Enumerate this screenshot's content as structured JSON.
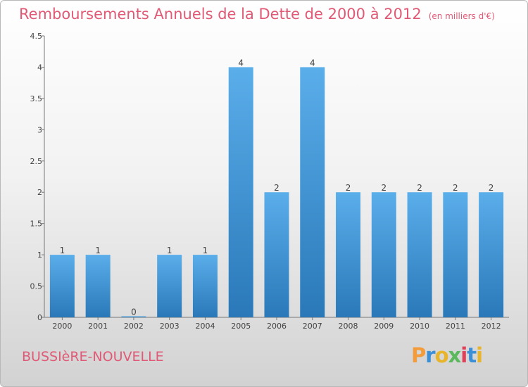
{
  "header": {
    "title": "Remboursements Annuels de la Dette de 2000 à 2012",
    "subtitle": "(en milliers d'€)"
  },
  "footer": {
    "commune": "BUSSIèRE-NOUVELLE",
    "brand": "Proxiti",
    "brand_colors": [
      "#f39c3c",
      "#3a8fd6",
      "#e8b52a",
      "#5cb85c",
      "#e0405a",
      "#3a8fd6",
      "#e8b52a"
    ]
  },
  "chart_data": {
    "type": "bar",
    "categories": [
      "2000",
      "2001",
      "2002",
      "2003",
      "2004",
      "2005",
      "2006",
      "2007",
      "2008",
      "2009",
      "2010",
      "2011",
      "2012"
    ],
    "values": [
      1,
      1,
      0,
      1,
      1,
      4,
      2,
      4,
      2,
      2,
      2,
      2,
      2
    ],
    "data_labels": [
      "1",
      "1",
      "0",
      "1",
      "1",
      "4",
      "2",
      "4",
      "2",
      "2",
      "2",
      "2",
      "2"
    ],
    "y_ticks": [
      "0",
      "0.5",
      "1",
      "1.5",
      "2",
      "2.5",
      "3",
      "3.5",
      "4",
      "4.5"
    ],
    "ylim": [
      0,
      4.5
    ],
    "grid": false,
    "bar_color_top": "#5aaeea",
    "bar_color_bottom": "#2a78b8"
  }
}
